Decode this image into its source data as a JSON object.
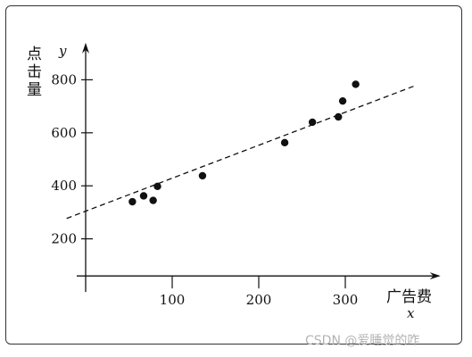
{
  "chart_data": {
    "type": "scatter",
    "xlabel": "广告费",
    "xvar": "x",
    "ylabel": "点击量",
    "yvar": "y",
    "xticks": [
      100,
      200,
      300
    ],
    "yticks": [
      200,
      400,
      600,
      800
    ],
    "xlim": [
      0,
      410
    ],
    "ylim": [
      60,
      940
    ],
    "grid": false,
    "points": [
      {
        "x": 54,
        "y": 340
      },
      {
        "x": 67,
        "y": 362
      },
      {
        "x": 78,
        "y": 345
      },
      {
        "x": 83,
        "y": 398
      },
      {
        "x": 135,
        "y": 438
      },
      {
        "x": 230,
        "y": 563
      },
      {
        "x": 262,
        "y": 640
      },
      {
        "x": 292,
        "y": 660
      },
      {
        "x": 297,
        "y": 720
      },
      {
        "x": 312,
        "y": 783
      }
    ],
    "trendline": {
      "style": "dashed",
      "x": [
        -22,
        380
      ],
      "y": [
        277,
        777
      ]
    }
  },
  "watermark": "CSDN @爱睡觉的咋"
}
